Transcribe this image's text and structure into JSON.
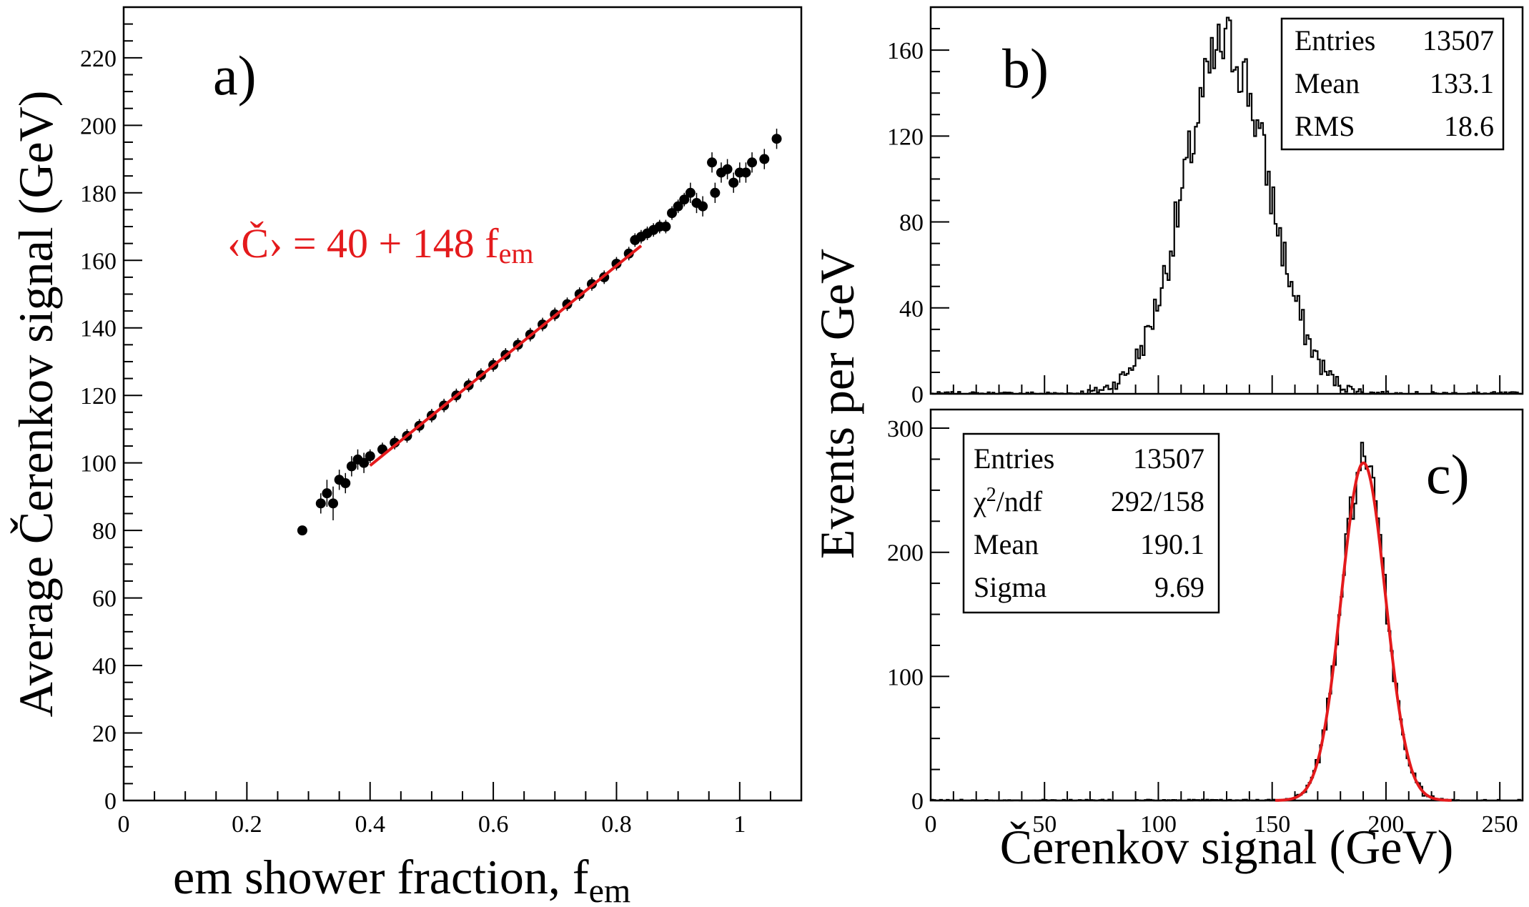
{
  "chart_data": [
    {
      "panel": "a)",
      "type": "scatter",
      "xlabel": "em shower fraction, f",
      "xlabel_sub": "em",
      "ylabel": "Average Čerenkov signal (GeV)",
      "xlim": [
        0,
        1.1
      ],
      "ylim": [
        0,
        235
      ],
      "xticks": [
        "0",
        "0.2",
        "0.4",
        "0.6",
        "0.8",
        "1"
      ],
      "yticks": [
        "0",
        "20",
        "40",
        "60",
        "80",
        "100",
        "120",
        "140",
        "160",
        "180",
        "200",
        "220"
      ],
      "annotation": "‹Č› = 40 + 148 f",
      "annotation_sub": "em",
      "fit": {
        "intercept": 40,
        "slope": 148,
        "x_range": [
          0.4,
          0.84
        ],
        "color": "#e41a1c"
      },
      "points": [
        [
          0.29,
          80,
          0
        ],
        [
          0.32,
          88,
          3
        ],
        [
          0.33,
          91,
          4
        ],
        [
          0.34,
          88,
          5
        ],
        [
          0.35,
          95,
          3
        ],
        [
          0.36,
          94,
          3
        ],
        [
          0.37,
          99,
          3
        ],
        [
          0.38,
          101,
          3
        ],
        [
          0.39,
          100,
          3
        ],
        [
          0.4,
          102,
          2
        ],
        [
          0.42,
          104,
          2
        ],
        [
          0.44,
          106,
          2
        ],
        [
          0.46,
          108,
          2
        ],
        [
          0.48,
          111,
          2
        ],
        [
          0.5,
          114,
          2
        ],
        [
          0.52,
          117,
          2
        ],
        [
          0.54,
          120,
          2
        ],
        [
          0.56,
          123,
          2
        ],
        [
          0.58,
          126,
          2
        ],
        [
          0.6,
          129,
          2
        ],
        [
          0.62,
          132,
          2
        ],
        [
          0.64,
          135,
          2
        ],
        [
          0.66,
          138,
          2
        ],
        [
          0.68,
          141,
          2
        ],
        [
          0.7,
          144,
          2
        ],
        [
          0.72,
          147,
          2
        ],
        [
          0.74,
          150,
          2
        ],
        [
          0.76,
          153,
          2
        ],
        [
          0.78,
          155,
          2
        ],
        [
          0.8,
          159,
          2
        ],
        [
          0.82,
          162,
          2
        ],
        [
          0.83,
          166,
          2
        ],
        [
          0.84,
          167,
          2
        ],
        [
          0.85,
          168,
          2
        ],
        [
          0.86,
          169,
          2
        ],
        [
          0.87,
          170,
          2
        ],
        [
          0.88,
          170,
          2
        ],
        [
          0.89,
          174,
          2
        ],
        [
          0.9,
          176,
          2
        ],
        [
          0.91,
          178,
          2
        ],
        [
          0.92,
          180,
          3
        ],
        [
          0.93,
          177,
          3
        ],
        [
          0.94,
          176,
          3
        ],
        [
          0.955,
          189,
          3
        ],
        [
          0.96,
          180,
          3
        ],
        [
          0.97,
          186,
          3
        ],
        [
          0.98,
          187,
          3
        ],
        [
          0.99,
          183,
          3
        ],
        [
          1.0,
          186,
          3
        ],
        [
          1.01,
          186,
          3
        ],
        [
          1.02,
          189,
          3
        ],
        [
          1.04,
          190,
          3
        ],
        [
          1.06,
          196,
          3
        ]
      ]
    },
    {
      "panel": "b)",
      "type": "histogram",
      "xlim": [
        0,
        260
      ],
      "ylim": [
        0,
        180
      ],
      "yticks": [
        "0",
        "40",
        "80",
        "120",
        "160"
      ],
      "gaussian": {
        "mean": 130,
        "sigma": 18.6,
        "peak": 162
      },
      "stats": [
        {
          "label": "Entries",
          "value": "13507"
        },
        {
          "label": "Mean",
          "value": "133.1"
        },
        {
          "label": "RMS",
          "value": "18.6"
        }
      ]
    },
    {
      "panel": "c)",
      "type": "histogram",
      "xlabel": "Čerenkov signal (GeV)",
      "xlim": [
        0,
        260
      ],
      "ylim": [
        0,
        315
      ],
      "xticks": [
        "0",
        "50",
        "100",
        "150",
        "200",
        "250"
      ],
      "yticks": [
        "0",
        "100",
        "200",
        "300"
      ],
      "gaussian": {
        "mean": 190.1,
        "sigma": 9.69,
        "peak": 272
      },
      "fit_color": "#e41a1c",
      "stats": [
        {
          "label": "Entries",
          "value": "13507"
        },
        {
          "label": "χ",
          "label_sup": "2",
          "label_rest": "/ndf",
          "value": "292/158"
        },
        {
          "label": "Mean",
          "value": "190.1"
        },
        {
          "label": "Sigma",
          "value": "9.69"
        }
      ]
    }
  ],
  "shared_ylabel": "Events per GeV"
}
